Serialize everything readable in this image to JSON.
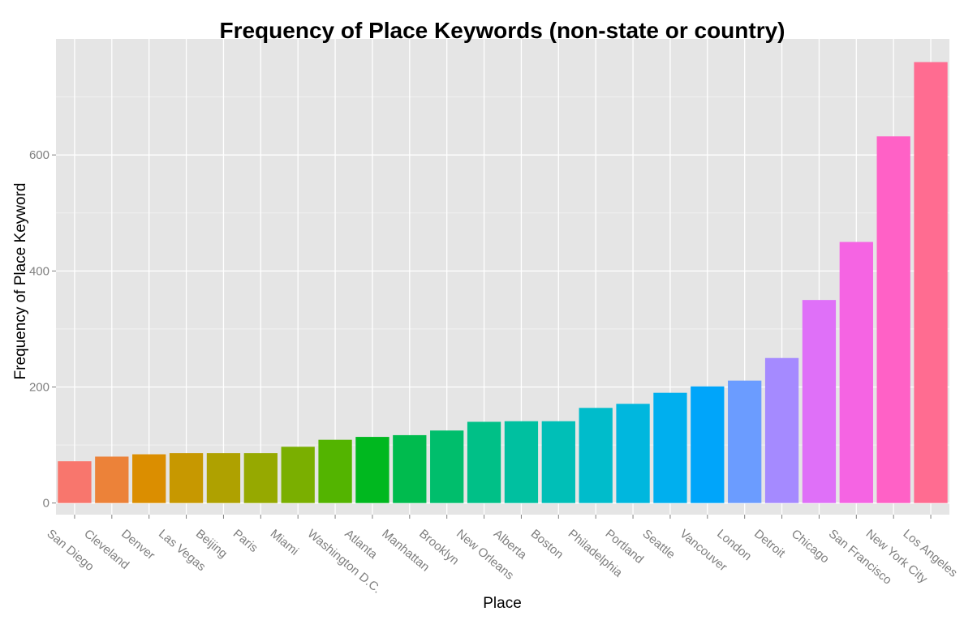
{
  "chart_data": {
    "type": "bar",
    "title": "Frequency of Place Keywords (non-state or country)",
    "xlabel": "Place",
    "ylabel": "Frequency of Place Keyword",
    "categories": [
      "San Diego",
      "Cleveland",
      "Denver",
      "Las Vegas",
      "Beijing",
      "Paris",
      "Miami",
      "Washington D.C.",
      "Atlanta",
      "Manhattan",
      "Brooklyn",
      "New Orleans",
      "Alberta",
      "Boston",
      "Philadelphia",
      "Portland",
      "Seattle",
      "Vancouver",
      "London",
      "Detroit",
      "Chicago",
      "San Francisco",
      "New York City",
      "Los Angeles"
    ],
    "values": [
      72,
      80,
      84,
      86,
      86,
      86,
      97,
      109,
      114,
      117,
      125,
      140,
      141,
      141,
      164,
      171,
      190,
      201,
      211,
      250,
      350,
      450,
      632,
      760
    ],
    "colors": [
      "#F8766D",
      "#EC8239",
      "#DB8E00",
      "#C79800",
      "#AFA100",
      "#96A900",
      "#7AAF00",
      "#53B400",
      "#00B81F",
      "#00BB4E",
      "#00BE6C",
      "#00C087",
      "#00C0A0",
      "#00BFB7",
      "#00BCCB",
      "#00B7DE",
      "#00AFEE",
      "#00A5FA",
      "#6B9CFF",
      "#A58AFF",
      "#DF70F8",
      "#F564E3",
      "#FF61C6",
      "#FF6C91"
    ],
    "yticks": [
      0,
      200,
      400,
      600
    ],
    "ylim": [
      -20,
      800
    ],
    "grid": true,
    "legend": "none"
  }
}
